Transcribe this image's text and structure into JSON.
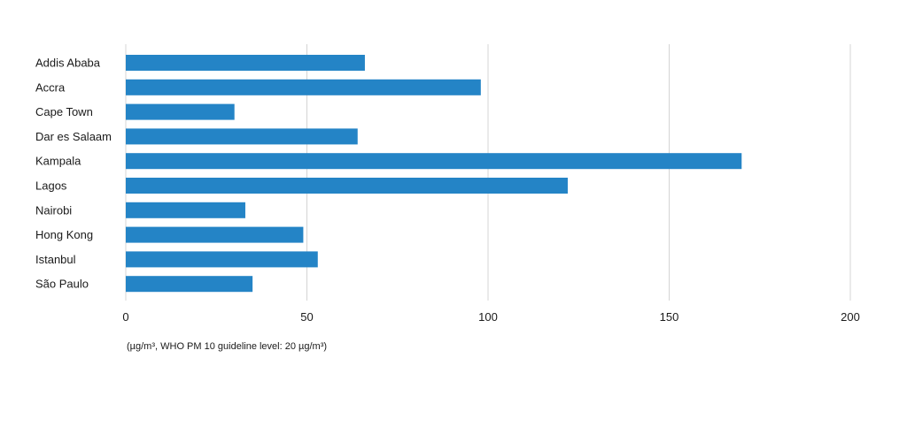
{
  "chart_data": {
    "type": "bar",
    "orientation": "horizontal",
    "categories": [
      "Addis Ababa",
      "Accra",
      "Cape Town",
      "Dar es Salaam",
      "Kampala",
      "Lagos",
      "Nairobi",
      "Hong Kong",
      "Istanbul",
      "São Paulo"
    ],
    "values": [
      66,
      98,
      30,
      64,
      170,
      122,
      33,
      49,
      53,
      35
    ],
    "title": "",
    "xlabel": "(µg/m³, WHO PM 10 guideline level: 20 µg/m³)",
    "ylabel": "",
    "xlim": [
      0,
      200
    ],
    "xticks": [
      0,
      50,
      100,
      150,
      200
    ],
    "tick_labels": [
      "0",
      "50",
      "100",
      "150",
      "200"
    ],
    "grid": "vertical",
    "legend": "none",
    "bar_color": "#2484c6"
  }
}
